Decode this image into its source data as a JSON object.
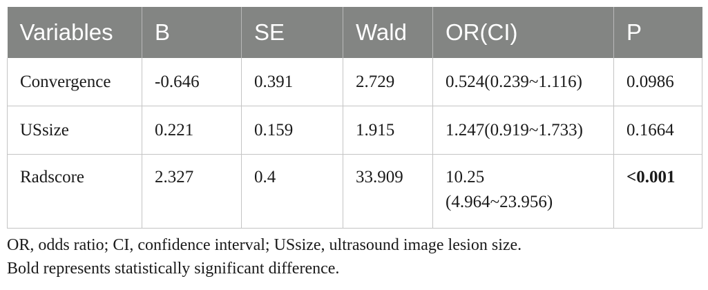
{
  "table": {
    "headers": [
      "Variables",
      "B",
      "SE",
      "Wald",
      "OR(CI)",
      "P"
    ],
    "rows": [
      {
        "variable": "Convergence",
        "b": "-0.646",
        "se": "0.391",
        "wald": "2.729",
        "or_ci_line1": "0.524(0.239~1.116)",
        "or_ci_line2": "",
        "p": "0.0986",
        "p_bold": false
      },
      {
        "variable": "USsize",
        "b": "0.221",
        "se": "0.159",
        "wald": "1.915",
        "or_ci_line1": "1.247(0.919~1.733)",
        "or_ci_line2": "",
        "p": "0.1664",
        "p_bold": false
      },
      {
        "variable": "Radscore",
        "b": "2.327",
        "se": "0.4",
        "wald": "33.909",
        "or_ci_line1": "10.25",
        "or_ci_line2": "(4.964~23.956)",
        "p": "<0.001",
        "p_bold": true
      }
    ]
  },
  "footnotes": {
    "line1": "OR, odds ratio; CI, confidence interval; USsize, ultrasound image lesion size.",
    "line2": "Bold represents statistically significant difference."
  },
  "colors": {
    "header_bg": "#838583",
    "header_text": "#ffffff",
    "grid_line": "#c4c4c4"
  }
}
